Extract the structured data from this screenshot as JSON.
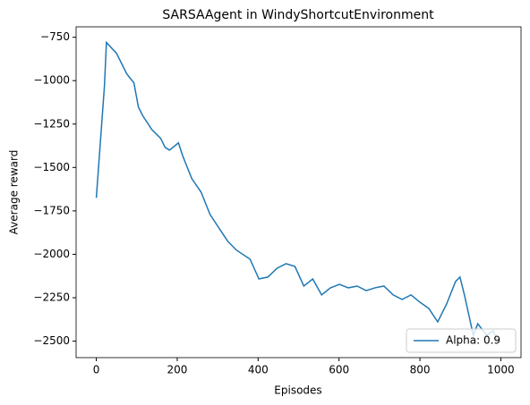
{
  "chart_data": {
    "type": "line",
    "title": "SARSAAgent in WindyShortcutEnvironment",
    "xlabel": "Episodes",
    "ylabel": "Average reward",
    "x": [
      0,
      20,
      25,
      50,
      75,
      93,
      104,
      115,
      137,
      159,
      170,
      181,
      203,
      214,
      236,
      259,
      281,
      303,
      325,
      347,
      380,
      402,
      424,
      447,
      469,
      491,
      513,
      535,
      557,
      579,
      601,
      623,
      645,
      667,
      689,
      711,
      734,
      756,
      778,
      800,
      822,
      844,
      866,
      888,
      899,
      910,
      932,
      943,
      965,
      981,
      990
    ],
    "series": [
      {
        "name": "Alpha: 0.9",
        "color": "#1f77b4",
        "values": [
          -1675,
          -1033,
          -780,
          -843,
          -960,
          -1013,
          -1152,
          -1203,
          -1281,
          -1332,
          -1384,
          -1400,
          -1358,
          -1436,
          -1564,
          -1642,
          -1770,
          -1848,
          -1925,
          -1977,
          -2028,
          -2142,
          -2131,
          -2080,
          -2054,
          -2070,
          -2183,
          -2142,
          -2234,
          -2193,
          -2173,
          -2193,
          -2183,
          -2209,
          -2193,
          -2183,
          -2234,
          -2260,
          -2234,
          -2276,
          -2312,
          -2389,
          -2286,
          -2157,
          -2131,
          -2234,
          -2466,
          -2400,
          -2466,
          -2440,
          -2492
        ]
      }
    ],
    "xlim": [
      -50,
      1050
    ],
    "xticks": [
      0,
      200,
      400,
      600,
      800,
      1000
    ],
    "ylim": [
      -2595,
      -690
    ],
    "yticks": [
      -750,
      -1000,
      -1250,
      -1500,
      -1750,
      -2000,
      -2250,
      -2500
    ],
    "yticklabels": [
      "−750",
      "−1000",
      "−1250",
      "−1500",
      "−1750",
      "−2000",
      "−2250",
      "−2500"
    ],
    "legend": "lower right"
  }
}
